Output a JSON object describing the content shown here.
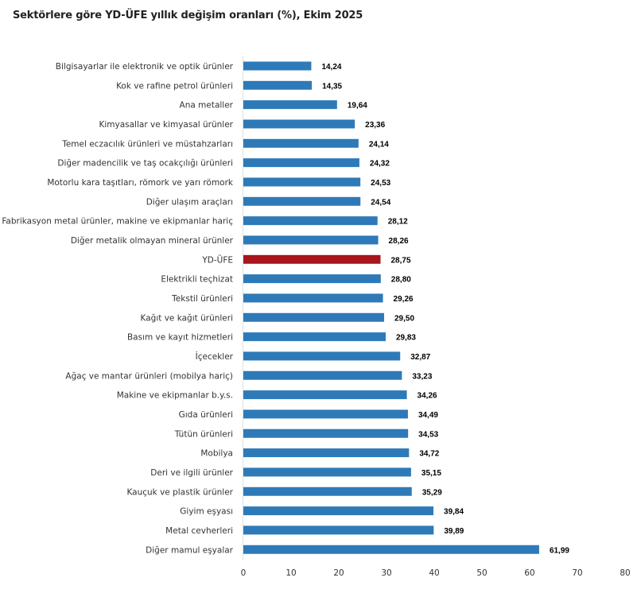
{
  "chart_data": {
    "type": "bar",
    "orientation": "horizontal",
    "title": "Sektörlere göre YD-ÜFE yıllık değişim oranları (%), Ekim 2025",
    "categories": [
      "Bilgisayarlar ile elektronik ve optik ürünler",
      "Kok ve rafine petrol ürünleri",
      "Ana metaller",
      "Kimyasallar ve kimyasal ürünler",
      "Temel eczacılık ürünleri ve müstahzarları",
      "Diğer madencilik ve taş ocakçılığı ürünleri",
      "Motorlu kara taşıtları, römork ve yarı römork",
      "Diğer ulaşım araçları",
      "Fabrikasyon metal ürünler, makine ve ekipmanlar hariç",
      "Diğer metalik olmayan mineral ürünler",
      "YD-ÜFE",
      "Elektrikli teçhizat",
      "Tekstil ürünleri",
      "Kağıt ve kağıt ürünleri",
      "Basım ve kayıt hizmetleri",
      "İçecekler",
      "Ağaç ve mantar ürünleri (mobilya hariç)",
      "Makine ve ekipmanlar b.y.s.",
      "Gıda ürünleri",
      "Tütün ürünleri",
      "Mobilya",
      "Deri ve ilgili ürünler",
      "Kauçuk ve plastik ürünler",
      "Giyim eşyası",
      "Metal cevherleri",
      "Diğer mamul eşyalar"
    ],
    "values": [
      14.24,
      14.35,
      19.64,
      23.36,
      24.14,
      24.32,
      24.53,
      24.54,
      28.12,
      28.26,
      28.75,
      28.8,
      29.26,
      29.5,
      29.83,
      32.87,
      33.23,
      34.26,
      34.49,
      34.53,
      34.72,
      35.15,
      35.29,
      39.84,
      39.89,
      61.99
    ],
    "value_labels": [
      "14,24",
      "14,35",
      "19,64",
      "23,36",
      "24,14",
      "24,32",
      "24,53",
      "24,54",
      "28,12",
      "28,26",
      "28,75",
      "28,80",
      "29,26",
      "29,50",
      "29,83",
      "32,87",
      "33,23",
      "34,26",
      "34,49",
      "34,53",
      "34,72",
      "35,15",
      "35,29",
      "39,84",
      "39,89",
      "61,99"
    ],
    "highlight_category": "YD-ÜFE",
    "xlim": [
      0,
      80
    ],
    "xticks": [
      "0",
      "10",
      "20",
      "30",
      "40",
      "50",
      "60",
      "70",
      "80"
    ],
    "xlabel": "",
    "ylabel": "",
    "grid": false,
    "colors": {
      "bar": "#2e7ab8",
      "highlight": "#a8151c"
    }
  }
}
